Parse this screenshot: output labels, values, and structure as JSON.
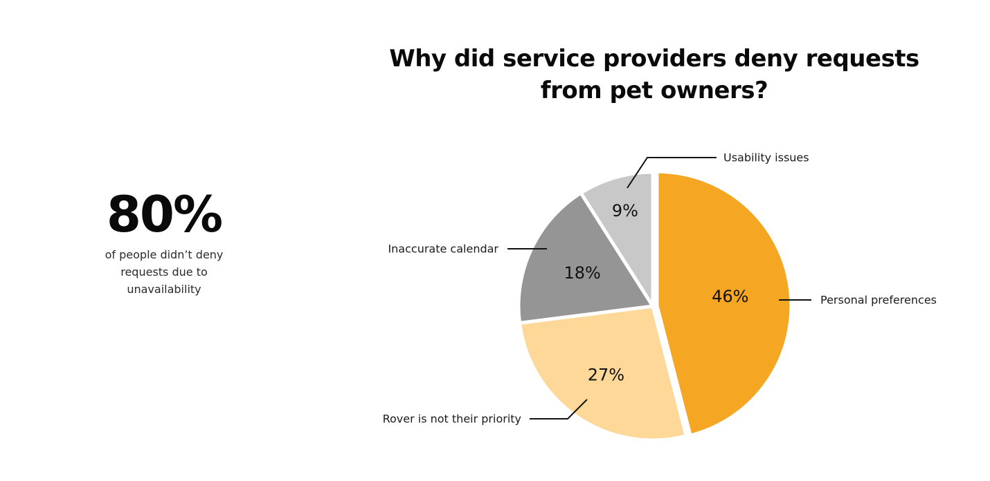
{
  "stat": {
    "value": "80%",
    "caption_lines": [
      "of people didn’t deny",
      "requests due to",
      "unavailability"
    ]
  },
  "chart_data": {
    "type": "pie",
    "title_lines": [
      "Why did service providers deny requests",
      "from pet owners?"
    ],
    "slices": [
      {
        "label": "Personal preferences",
        "value": 46,
        "display": "46%",
        "color": "#F5A623"
      },
      {
        "label": "Rover is not their priority",
        "value": 27,
        "display": "27%",
        "color": "#FED899"
      },
      {
        "label": "Inaccurate calendar",
        "value": 18,
        "display": "18%",
        "color": "#959595"
      },
      {
        "label": "Usability issues",
        "value": 9,
        "display": "9%",
        "color": "#C8C8C8"
      }
    ],
    "start_angle_deg": 0,
    "direction": "clockwise"
  }
}
